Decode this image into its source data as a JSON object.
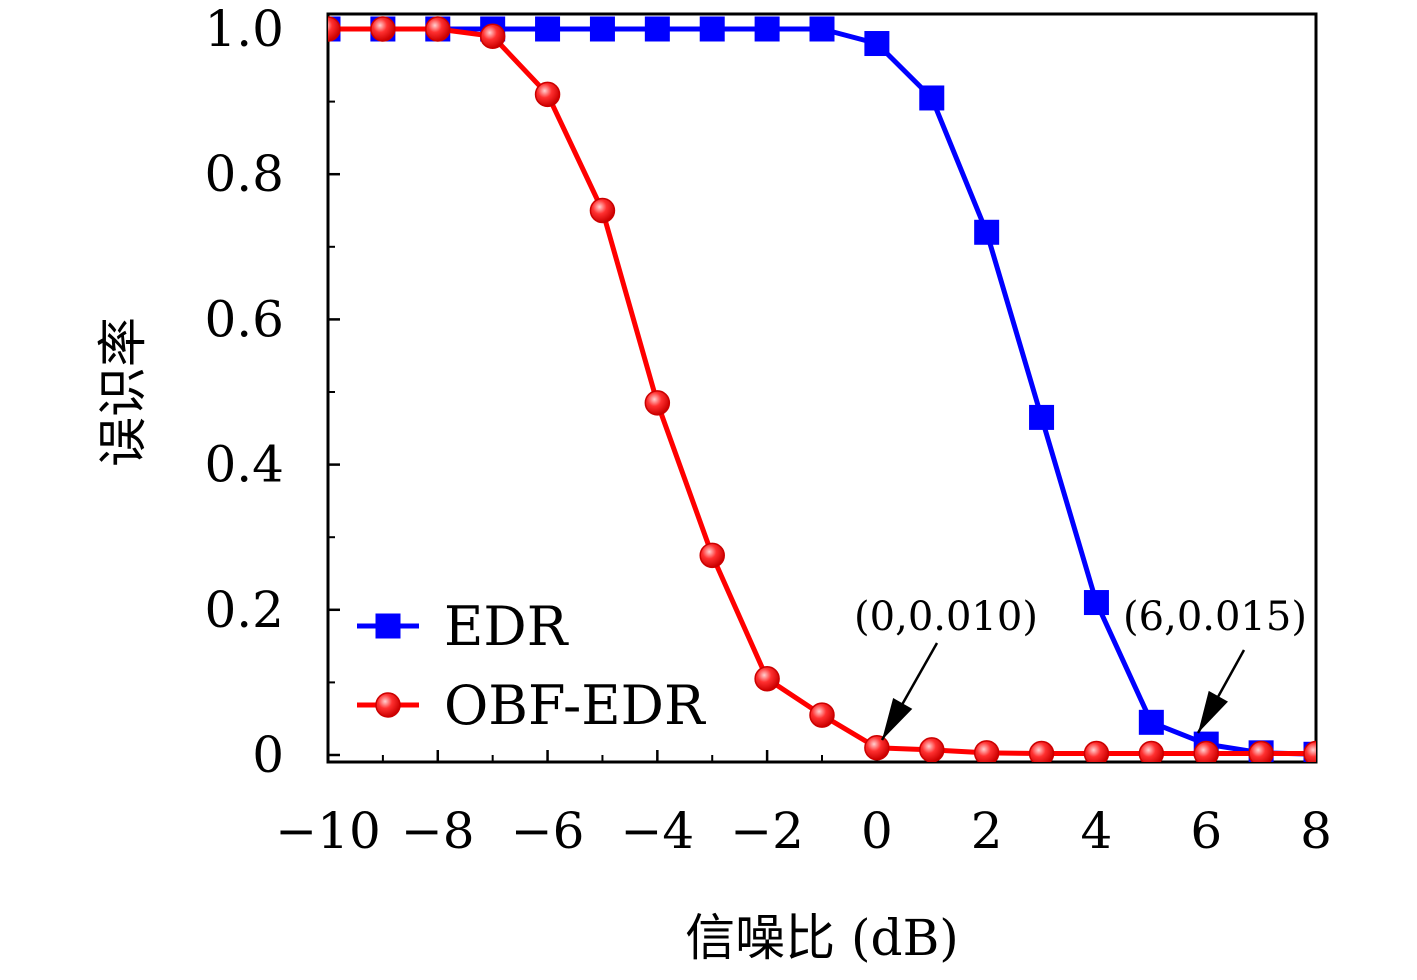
{
  "chart_data": {
    "type": "line",
    "xlabel": "信噪比 (dB)",
    "ylabel": "误识率",
    "xlim": [
      -10,
      8
    ],
    "ylim": [
      0,
      1.0
    ],
    "x_ticks": [
      -10,
      -8,
      -6,
      -4,
      -2,
      0,
      2,
      4,
      6,
      8
    ],
    "x_tick_labels": [
      "−10",
      "−8",
      "−6",
      "−4",
      "−2",
      "0",
      "2",
      "4",
      "6",
      "8"
    ],
    "y_ticks": [
      0,
      0.2,
      0.4,
      0.6,
      0.8,
      1.0
    ],
    "y_tick_labels": [
      "0",
      "0.2",
      "0.4",
      "0.6",
      "0.8",
      "1.0"
    ],
    "grid": false,
    "legend_position": "bottom-left",
    "series": [
      {
        "name": "EDR",
        "color": "#0000ff",
        "marker": "square",
        "x": [
          -10,
          -9,
          -8,
          -7,
          -6,
          -5,
          -4,
          -3,
          -2,
          -1,
          0,
          1,
          2,
          3,
          4,
          5,
          6,
          7,
          8
        ],
        "y": [
          1.0,
          1.0,
          1.0,
          1.0,
          1.0,
          1.0,
          1.0,
          1.0,
          1.0,
          1.0,
          0.98,
          0.905,
          0.72,
          0.465,
          0.21,
          0.045,
          0.015,
          0.003,
          0.001
        ]
      },
      {
        "name": "OBF-EDR",
        "color": "#ff0000",
        "marker": "circle",
        "x": [
          -10,
          -9,
          -8,
          -7,
          -6,
          -5,
          -4,
          -3,
          -2,
          -1,
          0,
          1,
          2,
          3,
          4,
          5,
          6,
          7,
          8
        ],
        "y": [
          1.0,
          1.0,
          1.0,
          0.99,
          0.91,
          0.75,
          0.485,
          0.275,
          0.105,
          0.055,
          0.01,
          0.007,
          0.003,
          0.002,
          0.002,
          0.002,
          0.002,
          0.002,
          0.002
        ]
      }
    ],
    "annotations": [
      {
        "text": "(0,0.010)",
        "x": 0,
        "y": 0.01
      },
      {
        "text": "(6,0.015)",
        "x": 6,
        "y": 0.015
      }
    ]
  }
}
